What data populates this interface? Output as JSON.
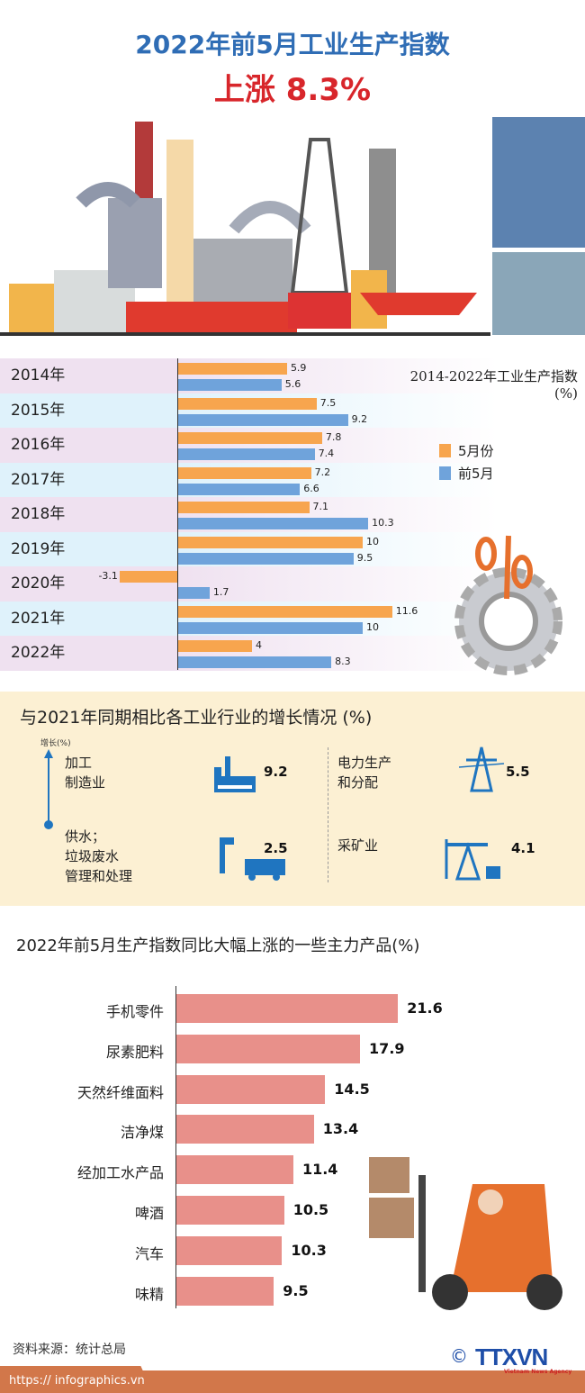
{
  "header": {
    "title": "2022年前5月工业生产指数",
    "subtitle": "上涨 8.3%"
  },
  "chart_data": [
    {
      "type": "bar",
      "orientation": "horizontal",
      "title": "2014-2022年工业生产指数",
      "unit": "(%)",
      "categories": [
        "2014年",
        "2015年",
        "2016年",
        "2017年",
        "2018年",
        "2019年",
        "2020年",
        "2021年",
        "2022年"
      ],
      "series": [
        {
          "name": "5月份",
          "color": "#f7a54e",
          "values": [
            5.9,
            7.5,
            7.8,
            7.2,
            7.1,
            10,
            -3.1,
            11.6,
            4
          ]
        },
        {
          "name": "前5月",
          "color": "#6fa3db",
          "values": [
            5.6,
            9.2,
            7.4,
            6.6,
            10.3,
            9.5,
            1.7,
            10,
            8.3
          ]
        }
      ],
      "labels": [
        [
          "5.9",
          "5.6"
        ],
        [
          "7.5",
          "9.2"
        ],
        [
          "7.8",
          "7.4"
        ],
        [
          "7.2",
          "6.6"
        ],
        [
          "7.1",
          "10.3"
        ],
        [
          "10",
          "9.5"
        ],
        [
          "-3.1",
          "1.7"
        ],
        [
          "11.6",
          "10"
        ],
        [
          "4",
          "8.3"
        ]
      ]
    },
    {
      "type": "bar",
      "orientation": "horizontal",
      "title": "2022年前5月生产指数同比大幅上涨的一些主力产品(%)",
      "color": "#e8908a",
      "categories": [
        "手机零件",
        "尿素肥料",
        "天然纤维面料",
        "洁净煤",
        "经加工水产品",
        "啤酒",
        "汽车",
        "味精"
      ],
      "values": [
        21.6,
        17.9,
        14.5,
        13.4,
        11.4,
        10.5,
        10.3,
        9.5
      ],
      "labels": [
        "21.6",
        "17.9",
        "14.5",
        "13.4",
        "11.4",
        "10.5",
        "10.3",
        "9.5"
      ]
    }
  ],
  "sectors": {
    "title": "与2021年同期相比各工业行业的增长情况 (%)",
    "axis_label": "增长(%)",
    "items": [
      {
        "name1": "加工",
        "name2": "制造业",
        "name3": "",
        "value": "9.2",
        "icon": "factory-icon"
      },
      {
        "name1": "电力生产",
        "name2": "和分配",
        "name3": "",
        "value": "5.5",
        "icon": "power-tower-icon"
      },
      {
        "name1": "供水；",
        "name2": "垃圾废水",
        "name3": "管理和处理",
        "value": "2.5",
        "icon": "water-truck-icon"
      },
      {
        "name1": "采矿业",
        "name2": "",
        "name3": "",
        "value": "4.1",
        "icon": "oil-pump-icon"
      }
    ]
  },
  "footer": {
    "source": "资料来源：统计总局",
    "url": "https:// infographics.vn",
    "logo": "TTXVN",
    "logo_sub": "Vietnam News Agency",
    "copyright": "©"
  },
  "colors": {
    "title": "#2f6db5",
    "accent": "#d8262b",
    "icon": "#1f75c0"
  }
}
